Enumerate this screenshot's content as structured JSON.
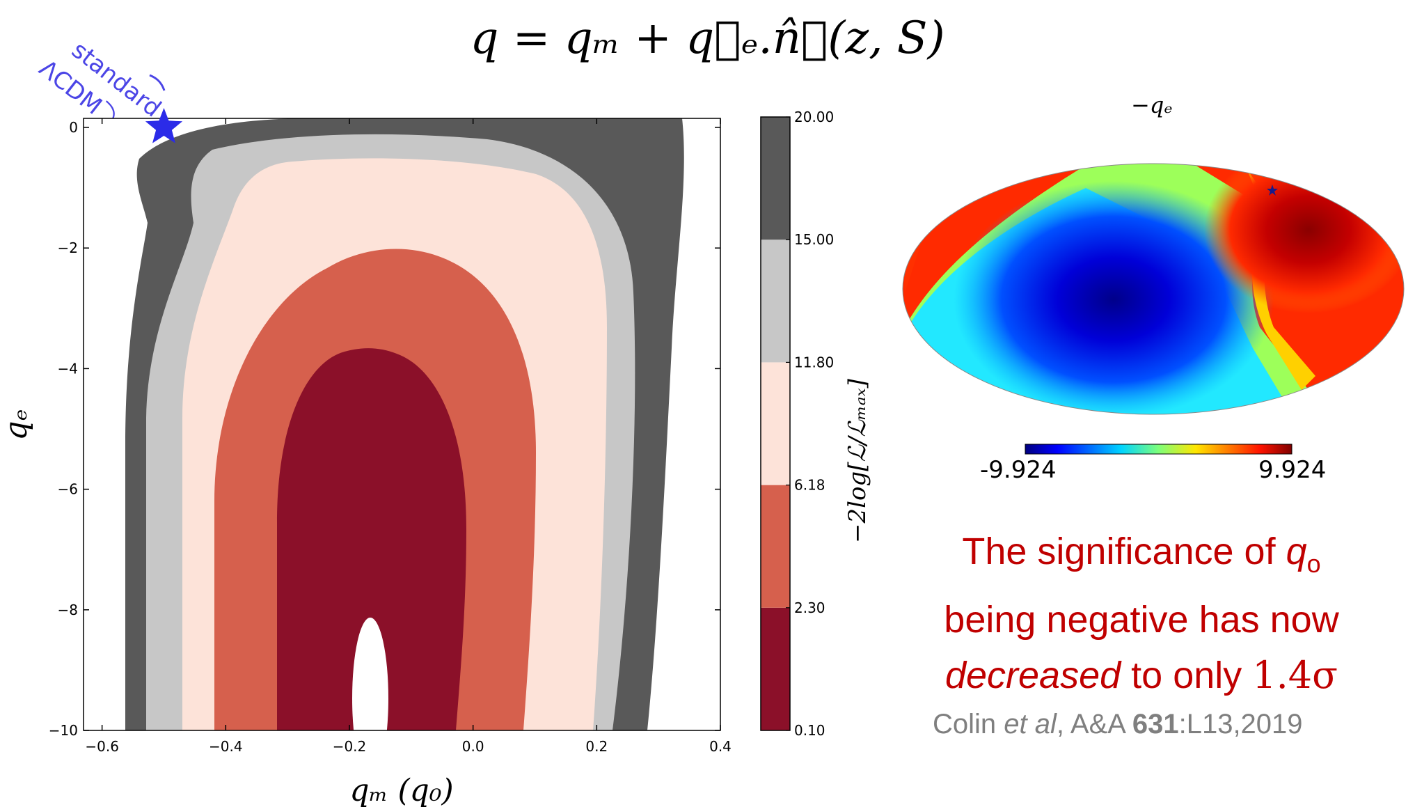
{
  "formula": "q = qₘ + q⃗ₑ.n̂𝓕(z, S)",
  "annotation": {
    "line1": "standard",
    "line2": "ΛCDM⤵"
  },
  "chart_data": [
    {
      "type": "contour",
      "xlabel": "qₘ (q₀)",
      "ylabel": "qₑ",
      "xlim": [
        -0.63,
        0.4
      ],
      "ylim": [
        -10,
        0.15
      ],
      "xticks": [
        -0.6,
        -0.4,
        -0.2,
        0.0,
        0.2,
        0.4
      ],
      "xtick_labels": [
        "−0.6",
        "−0.4",
        "−0.2",
        "0.0",
        "0.2",
        "0.4"
      ],
      "yticks": [
        0,
        -2,
        -4,
        -6,
        -8,
        -10
      ],
      "ytick_labels": [
        "0",
        "−2",
        "−4",
        "−6",
        "−8",
        "−10"
      ],
      "colorbar": {
        "label": "−2log[ℒ/ℒₘₐₓ]",
        "levels": [
          0.1,
          2.3,
          6.18,
          11.8,
          15.0,
          20.0
        ],
        "level_labels": [
          "0.10",
          "2.30",
          "6.18",
          "11.80",
          "15.00",
          "20.00"
        ],
        "colors": [
          "#8b1029",
          "#d6604d",
          "#fde3d9",
          "#c7c7c7",
          "#595959"
        ]
      },
      "best_fit_region": {
        "qm_center": -0.15,
        "qd_range": [
          -9.5,
          -6.9
        ]
      },
      "marker": {
        "label": "standard ΛCDM",
        "qm": -0.5,
        "qd": 0.0,
        "color": "#2b2be8"
      }
    },
    {
      "type": "heatmap",
      "title": "−qₑ",
      "projection": "Mollweide",
      "colorbar": {
        "min_label": "-9.924",
        "max_label": "9.924",
        "min": -9.924,
        "max": 9.924
      }
    }
  ],
  "caption": {
    "part1": "The significance of ",
    "q": "q",
    "sub": "o",
    "part2": "being negative has now",
    "decreased": "decreased",
    "part3": " to only ",
    "sigma": "1.4σ"
  },
  "citation": {
    "authors": "Colin ",
    "etal": "et al",
    "journal": ", A&A ",
    "volume": "631",
    "rest": ":L13,2019"
  }
}
